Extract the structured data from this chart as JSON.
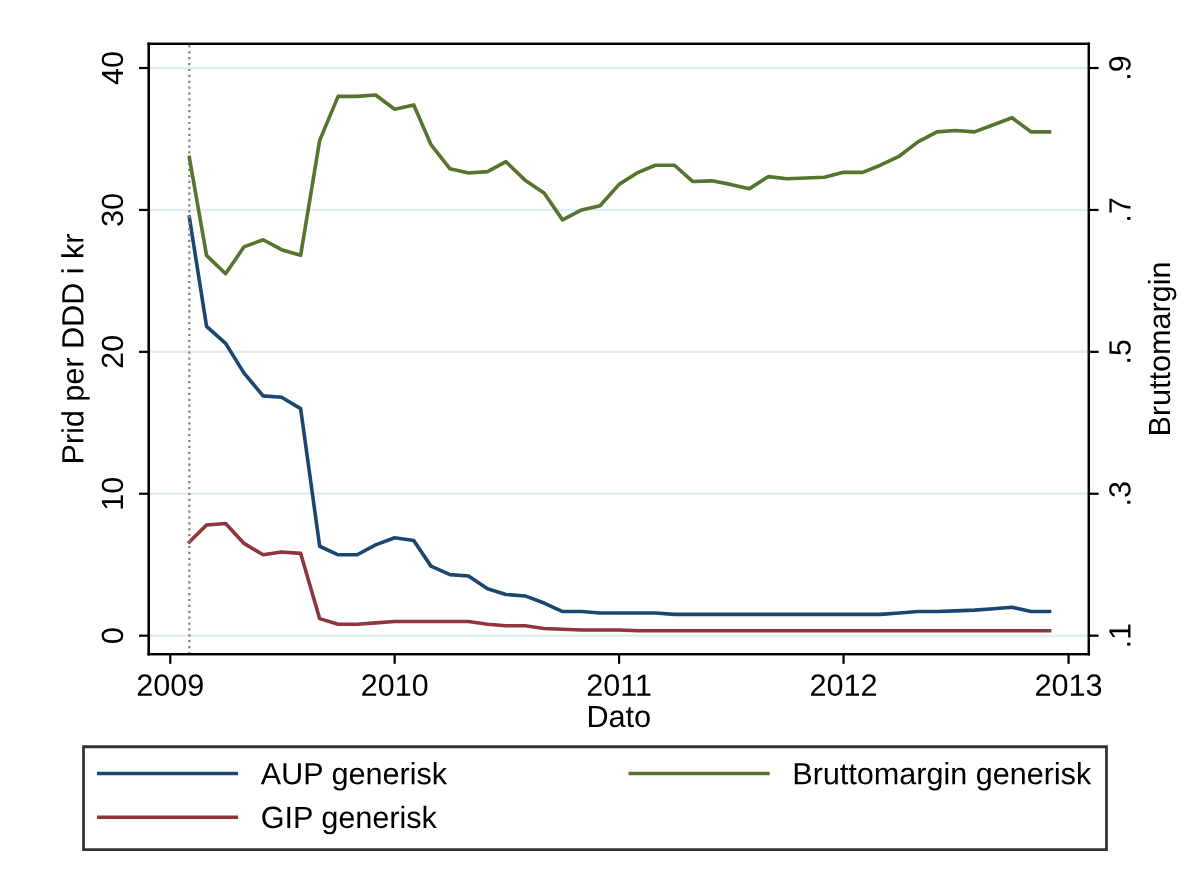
{
  "chart_data": {
    "type": "line",
    "xlabel": "Dato",
    "ylabel": "Prid per DDD i kr",
    "y2label": "Bruttomargin",
    "x": [
      "2009-02",
      "2009-03",
      "2009-04",
      "2009-05",
      "2009-06",
      "2009-07",
      "2009-08",
      "2009-09",
      "2009-10",
      "2009-11",
      "2009-12",
      "2010-01",
      "2010-02",
      "2010-03",
      "2010-04",
      "2010-05",
      "2010-06",
      "2010-07",
      "2010-08",
      "2010-09",
      "2010-10",
      "2010-11",
      "2010-12",
      "2011-01",
      "2011-02",
      "2011-03",
      "2011-04",
      "2011-05",
      "2011-06",
      "2011-07",
      "2011-08",
      "2011-09",
      "2011-10",
      "2011-11",
      "2011-12",
      "2012-01",
      "2012-02",
      "2012-03",
      "2012-04",
      "2012-05",
      "2012-06",
      "2012-07",
      "2012-08",
      "2012-09",
      "2012-10",
      "2012-11",
      "2012-12"
    ],
    "series": [
      {
        "name": "AUP generisk",
        "color": "#1a476f",
        "values": [
          29.5,
          21.8,
          20.6,
          18.5,
          16.9,
          16.8,
          16.0,
          6.3,
          5.7,
          5.7,
          6.4,
          6.9,
          6.7,
          4.9,
          4.3,
          4.2,
          3.3,
          2.9,
          2.8,
          2.3,
          1.7,
          1.7,
          1.6,
          1.6,
          1.6,
          1.6,
          1.5,
          1.5,
          1.5,
          1.5,
          1.5,
          1.5,
          1.5,
          1.5,
          1.5,
          1.5,
          1.5,
          1.5,
          1.6,
          1.7,
          1.7,
          1.75,
          1.8,
          1.9,
          2.0,
          1.7,
          1.7
        ]
      },
      {
        "name": "GIP generisk",
        "color": "#90353b",
        "values": [
          6.6,
          7.8,
          7.9,
          6.5,
          5.7,
          5.9,
          5.8,
          1.2,
          0.8,
          0.8,
          0.9,
          1.0,
          1.0,
          1.0,
          1.0,
          1.0,
          0.8,
          0.7,
          0.7,
          0.5,
          0.45,
          0.4,
          0.4,
          0.4,
          0.35,
          0.35,
          0.35,
          0.35,
          0.35,
          0.35,
          0.35,
          0.35,
          0.35,
          0.35,
          0.35,
          0.35,
          0.35,
          0.35,
          0.35,
          0.35,
          0.35,
          0.35,
          0.35,
          0.35,
          0.35,
          0.35,
          0.35
        ]
      },
      {
        "name": "Bruttomargin generisk",
        "color": "#55752f",
        "axis": "y2",
        "values": [
          0.774,
          0.636,
          0.61,
          0.648,
          0.658,
          0.644,
          0.636,
          0.798,
          0.86,
          0.86,
          0.862,
          0.842,
          0.848,
          0.792,
          0.758,
          0.752,
          0.754,
          0.768,
          0.742,
          0.724,
          0.686,
          0.7,
          0.706,
          0.736,
          0.753,
          0.763,
          0.763,
          0.74,
          0.741,
          0.736,
          0.73,
          0.747,
          0.744,
          0.745,
          0.746,
          0.753,
          0.753,
          0.763,
          0.776,
          0.796,
          0.81,
          0.812,
          0.81,
          0.82,
          0.83,
          0.81,
          0.81
        ]
      }
    ],
    "xlim": [
      "2008-11-27",
      "2013-02-03"
    ],
    "xticks": [
      {
        "value": "2009-01-01",
        "label": "2009"
      },
      {
        "value": "2010-01-01",
        "label": "2010"
      },
      {
        "value": "2011-01-01",
        "label": "2011"
      },
      {
        "value": "2012-01-01",
        "label": "2012"
      },
      {
        "value": "2013-01-01",
        "label": "2013"
      }
    ],
    "ylim": [
      -1.3,
      41.7
    ],
    "yticks": [
      0,
      10,
      20,
      30,
      40
    ],
    "y2lim": [
      0.074,
      0.934
    ],
    "y2ticks": [
      {
        "value": 0.1,
        "label": ".1"
      },
      {
        "value": 0.3,
        "label": ".3"
      },
      {
        "value": 0.5,
        "label": ".5"
      },
      {
        "value": 0.7,
        "label": ".7"
      },
      {
        "value": 0.9,
        "label": ".9"
      }
    ],
    "ref_lines": [
      {
        "axis": "x",
        "value": "2009-02",
        "color": "#808080",
        "line_style": "dotted"
      }
    ],
    "grid": "y",
    "legend": "bottom",
    "line_style": "solid",
    "marker": "none"
  }
}
